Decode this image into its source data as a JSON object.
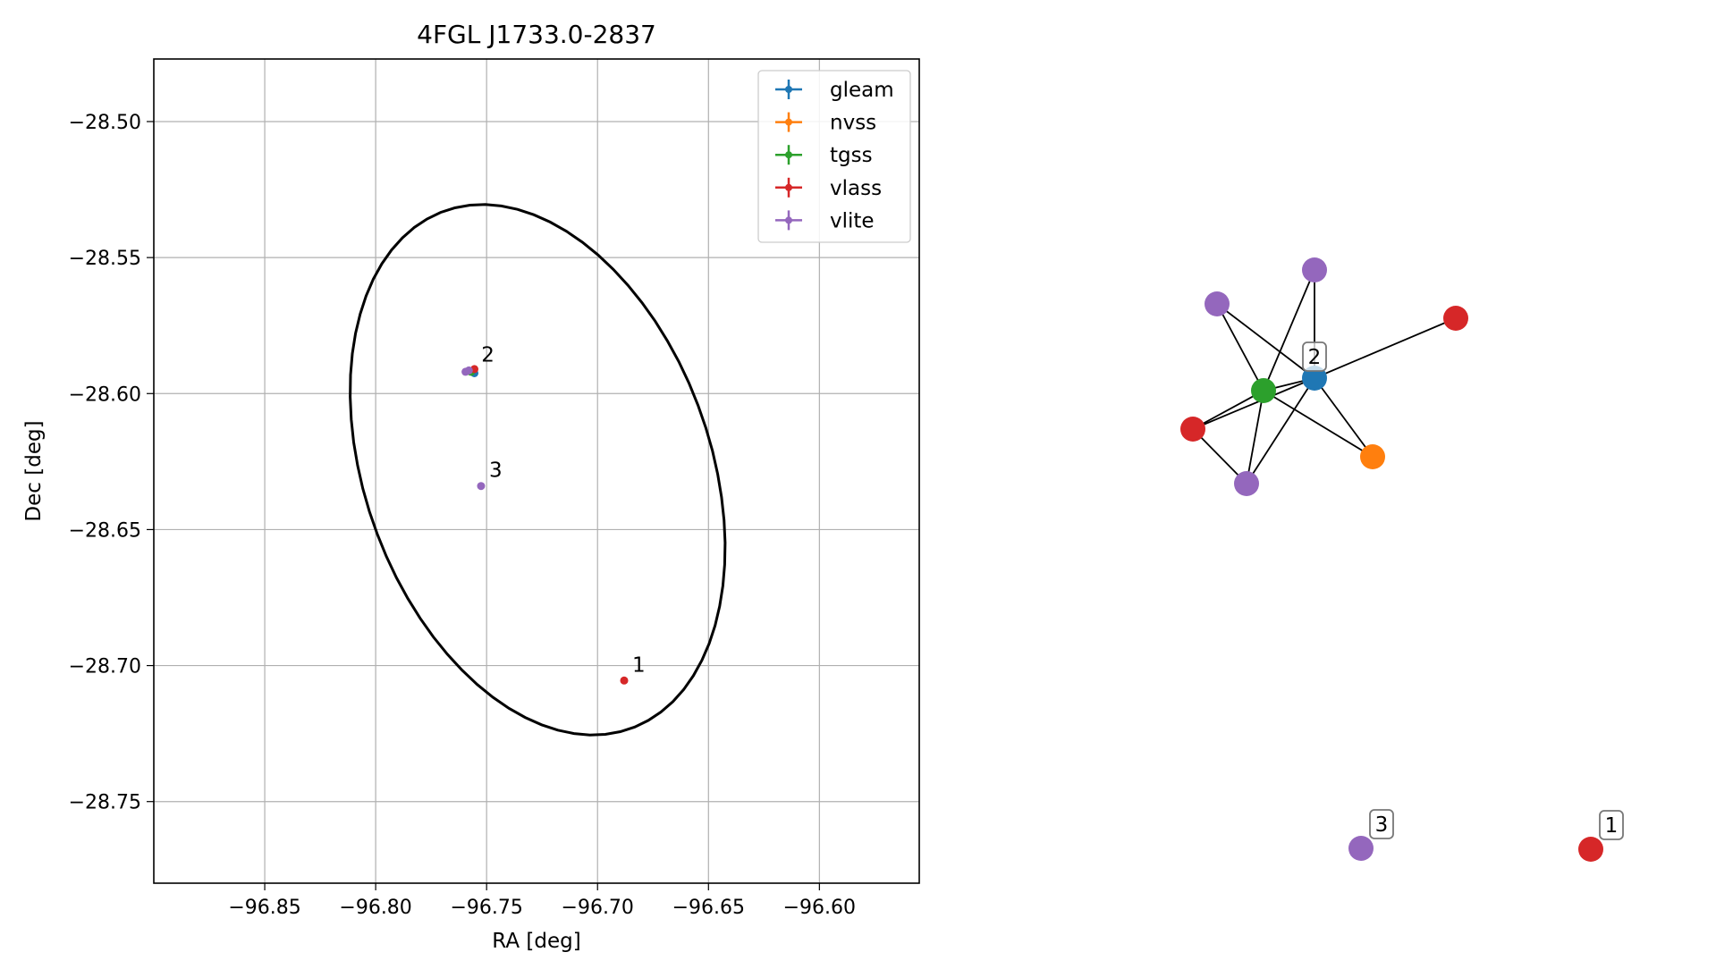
{
  "chart_data": [
    {
      "type": "scatter",
      "title": "4FGL J1733.0-2837",
      "xlabel": "RA [deg]",
      "ylabel": "Dec [deg]",
      "xlim": [
        -96.9,
        -96.555
      ],
      "ylim": [
        -28.78,
        -28.477
      ],
      "xticks": [
        -96.85,
        -96.8,
        -96.75,
        -96.7,
        -96.65,
        -96.6
      ],
      "xtick_labels": [
        "−96.85",
        "−96.80",
        "−96.75",
        "−96.70",
        "−96.65",
        "−96.60"
      ],
      "yticks": [
        -28.5,
        -28.55,
        -28.6,
        -28.65,
        -28.7,
        -28.75
      ],
      "ytick_labels": [
        "−28.50",
        "−28.55",
        "−28.60",
        "−28.65",
        "−28.70",
        "−28.75"
      ],
      "grid": true,
      "legend_position": "top-right",
      "ellipse": {
        "center": [
          -96.727,
          -28.628
        ],
        "semi_axis_a_deg": 0.105,
        "semi_axis_b_deg": 0.075,
        "rotation_deg": -58,
        "color": "#000000"
      },
      "series": [
        {
          "name": "gleam",
          "color": "#1f77b4",
          "points": [
            {
              "x": -96.7555,
              "y": -28.5925
            }
          ]
        },
        {
          "name": "nvss",
          "color": "#ff7f0e",
          "points": [
            {
              "x": -96.7575,
              "y": -28.5918
            }
          ]
        },
        {
          "name": "tgss",
          "color": "#2ca02c",
          "points": [
            {
              "x": -96.757,
              "y": -28.592
            }
          ]
        },
        {
          "name": "vlass",
          "color": "#d62728",
          "points": [
            {
              "x": -96.7555,
              "y": -28.591
            },
            {
              "x": -96.688,
              "y": -28.7055
            }
          ]
        },
        {
          "name": "vlite",
          "color": "#9467bd",
          "points": [
            {
              "x": -96.7595,
              "y": -28.592
            },
            {
              "x": -96.758,
              "y": -28.5915
            },
            {
              "x": -96.7525,
              "y": -28.634
            }
          ]
        }
      ],
      "annotations": [
        {
          "text": "1",
          "x": -96.688,
          "y": -28.7055
        },
        {
          "text": "2",
          "x": -96.756,
          "y": -28.5915
        },
        {
          "text": "3",
          "x": -96.7525,
          "y": -28.634
        }
      ]
    },
    {
      "type": "network",
      "nodes": [
        {
          "id": "n_blue",
          "color": "#1f77b4",
          "label": "2"
        },
        {
          "id": "n_green",
          "color": "#2ca02c",
          "label": ""
        },
        {
          "id": "n_orange",
          "color": "#ff7f0e",
          "label": ""
        },
        {
          "id": "n_red_l",
          "color": "#d62728",
          "label": ""
        },
        {
          "id": "n_red_r",
          "color": "#d62728",
          "label": ""
        },
        {
          "id": "n_pur_t",
          "color": "#9467bd",
          "label": ""
        },
        {
          "id": "n_pur_l",
          "color": "#9467bd",
          "label": ""
        },
        {
          "id": "n_pur_b",
          "color": "#9467bd",
          "label": ""
        },
        {
          "id": "n_pur_3",
          "color": "#9467bd",
          "label": "3"
        },
        {
          "id": "n_red_1",
          "color": "#d62728",
          "label": "1"
        }
      ],
      "edges": [
        [
          "n_pur_l",
          "n_green"
        ],
        [
          "n_pur_l",
          "n_blue"
        ],
        [
          "n_pur_t",
          "n_green"
        ],
        [
          "n_pur_t",
          "n_blue"
        ],
        [
          "n_blue",
          "n_red_r"
        ],
        [
          "n_green",
          "n_blue"
        ],
        [
          "n_green",
          "n_orange"
        ],
        [
          "n_blue",
          "n_orange"
        ],
        [
          "n_red_l",
          "n_green"
        ],
        [
          "n_red_l",
          "n_blue"
        ],
        [
          "n_red_l",
          "n_pur_b"
        ],
        [
          "n_pur_b",
          "n_green"
        ],
        [
          "n_pur_b",
          "n_blue"
        ]
      ]
    }
  ]
}
